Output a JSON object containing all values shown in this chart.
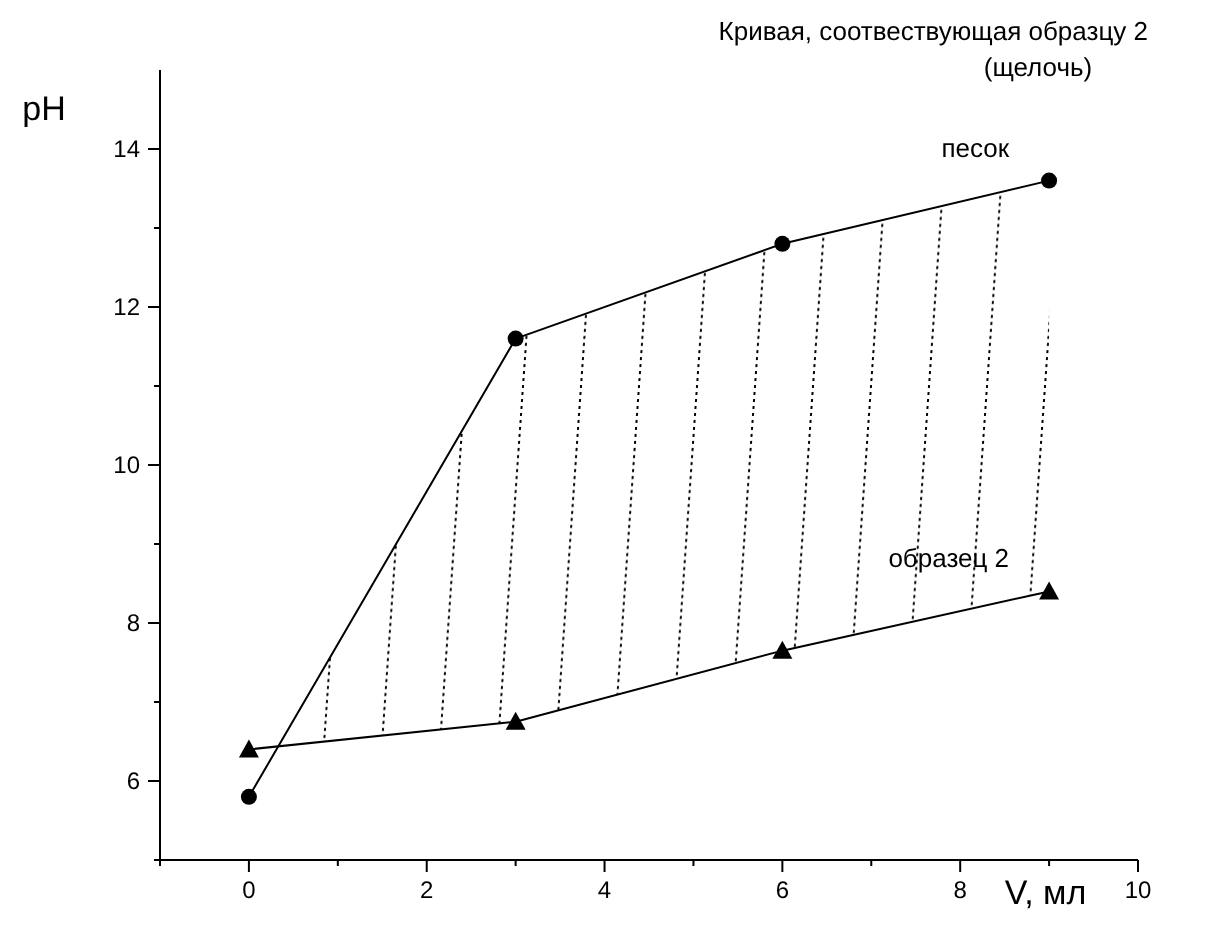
{
  "chart_data": {
    "type": "line",
    "title": "Кривая, соотвествующая образцу 2",
    "subtitle": "(щелочь)",
    "xlabel": "V, мл",
    "ylabel": "pH",
    "xlim": [
      -1,
      10
    ],
    "ylim": [
      5,
      15
    ],
    "xticks": [
      {
        "value": -1,
        "label": null
      },
      0,
      {
        "value": 1,
        "label": null
      },
      2,
      {
        "value": 3,
        "label": null
      },
      4,
      {
        "value": 5,
        "label": null
      },
      6,
      {
        "value": 7,
        "label": null
      },
      8,
      {
        "value": 9,
        "label": null
      },
      10
    ],
    "yticks": [
      {
        "value": 5,
        "label": null
      },
      6,
      {
        "value": 7,
        "label": null
      },
      8,
      {
        "value": 9,
        "label": null
      },
      10,
      {
        "value": 11,
        "label": null
      },
      12,
      {
        "value": 13,
        "label": null
      },
      14
    ],
    "grid": false,
    "series": [
      {
        "name": "песок",
        "color": "#000000",
        "marker": "circle",
        "x": [
          0,
          3,
          6,
          9
        ],
        "values": [
          5.8,
          11.6,
          12.8,
          13.6
        ]
      },
      {
        "name": "образец 2",
        "color": "#000000",
        "marker": "triangle",
        "x": [
          0,
          3,
          6,
          9
        ],
        "values": [
          6.4,
          6.75,
          7.65,
          8.4
        ]
      }
    ]
  }
}
